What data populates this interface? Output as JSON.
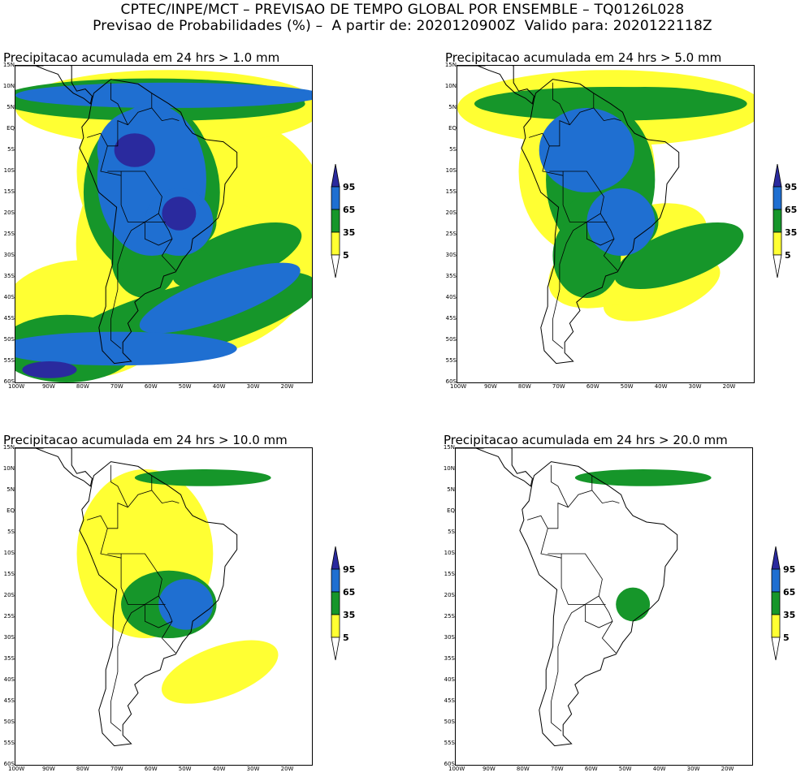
{
  "header": {
    "line1": "CPTEC/INPE/MCT – PREVISAO DE TEMPO GLOBAL POR ENSEMBLE – TQ0126L028",
    "line2": "Previsao de Probabilidades (%) –  A partir de: 2020120900Z  Valido para: 2020122118Z"
  },
  "panels": [
    {
      "title": "Precipitacao acumulada em 24 hrs > 1.0 mm",
      "level": 4
    },
    {
      "title": "Precipitacao acumulada em 24 hrs > 5.0 mm",
      "level": 3
    },
    {
      "title": "Precipitacao acumulada em 24 hrs > 10.0 mm",
      "level": 2
    },
    {
      "title": "Precipitacao acumulada em 24 hrs > 20.0 mm",
      "level": 1
    }
  ],
  "latitude_labels": [
    "15N",
    "10N",
    "5N",
    "EQ",
    "5S",
    "10S",
    "15S",
    "20S",
    "25S",
    "30S",
    "35S",
    "40S",
    "45S",
    "50S",
    "55S",
    "60S"
  ],
  "longitude_labels": [
    "100W",
    "90W",
    "80W",
    "70W",
    "60W",
    "50W",
    "40W",
    "30W",
    "20W"
  ],
  "colorbar": {
    "labels": [
      "95",
      "65",
      "35",
      "5"
    ],
    "colors": {
      "c95": "#2a2a9e",
      "c65": "#1f6fd1",
      "c35": "#16962a",
      "c5": "#ffff33"
    }
  }
}
